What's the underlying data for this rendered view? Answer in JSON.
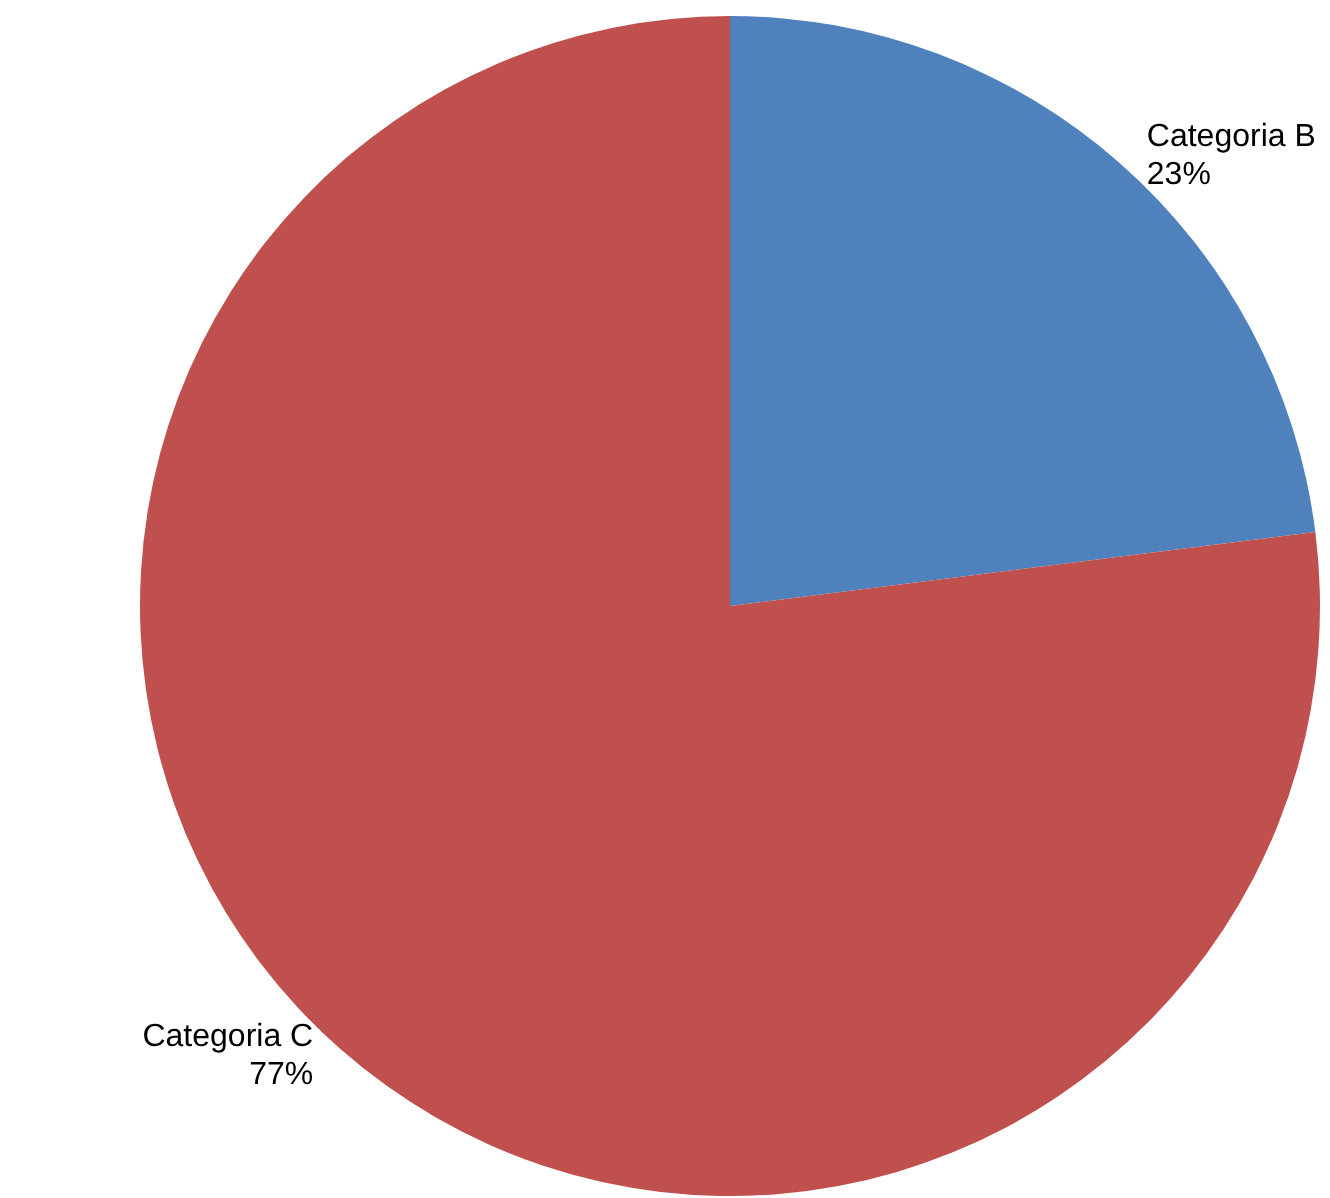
{
  "chart_data": {
    "type": "pie",
    "categories": [
      "Categoria B",
      "Categoria C"
    ],
    "values": [
      23,
      77
    ],
    "colors": [
      "#4f81bd",
      "#c0504d"
    ],
    "value_labels": [
      "23%",
      "77%"
    ],
    "legend": false
  }
}
